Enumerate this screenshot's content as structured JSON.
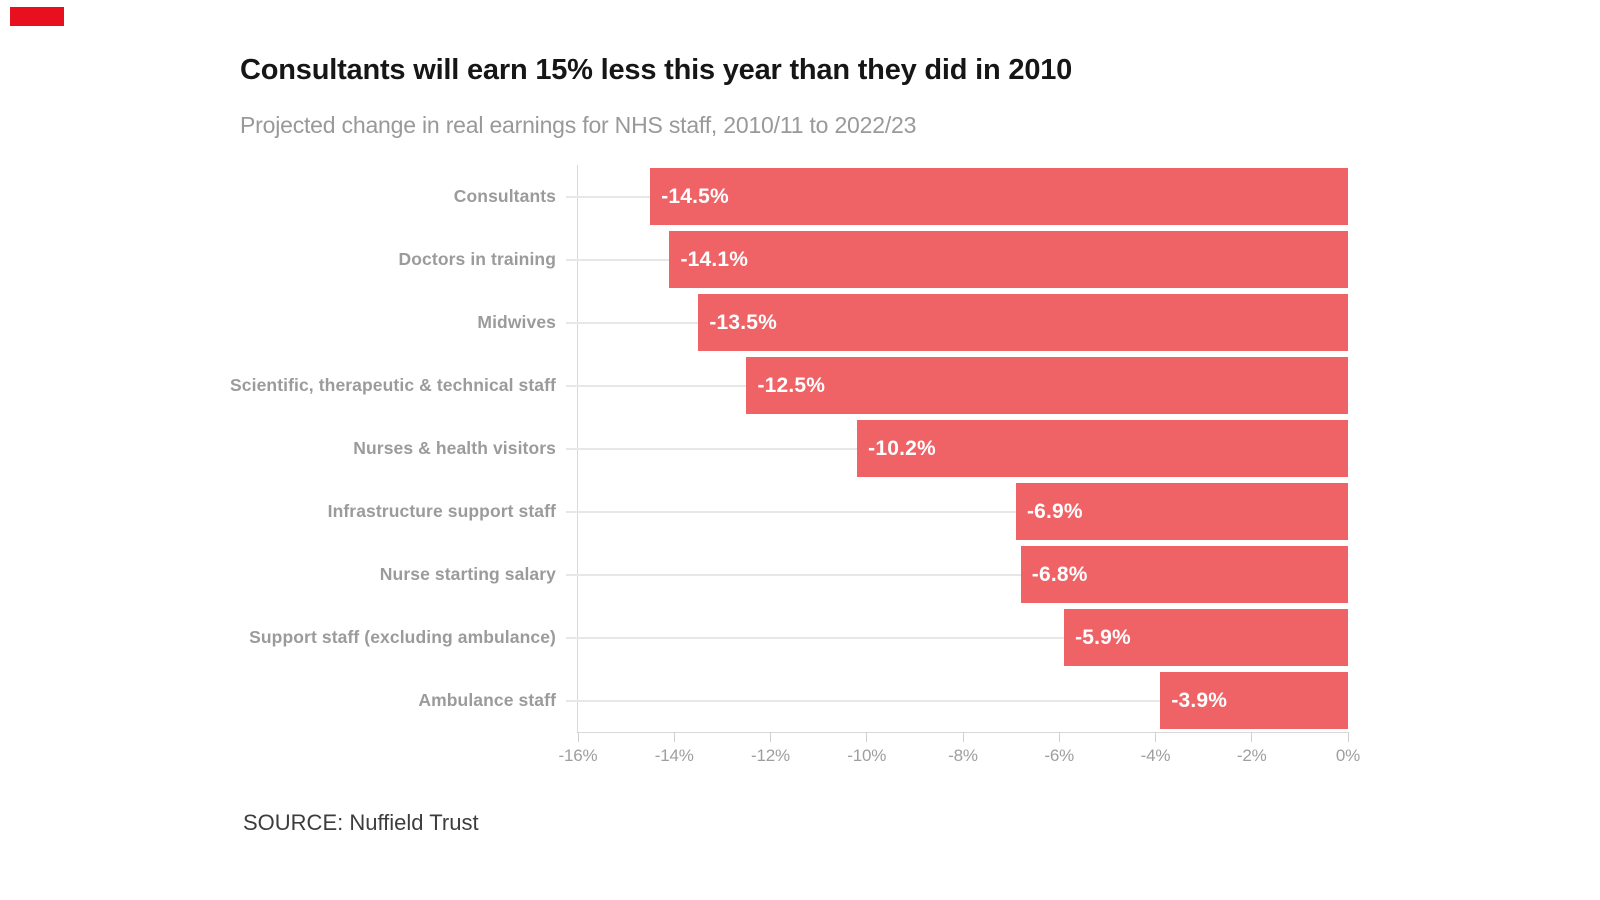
{
  "brand": {
    "name": "sky-red-flag",
    "color": "#e8101e"
  },
  "header": {
    "title": "Consultants will earn 15% less this year than they did in 2010",
    "subtitle": "Projected change in real earnings for NHS staff, 2010/11 to 2022/23"
  },
  "source": {
    "label": "SOURCE: Nuffield Trust"
  },
  "chart_data": {
    "type": "bar",
    "orientation": "horizontal",
    "title": "Consultants will earn 15% less this year than they did in 2010",
    "subtitle": "Projected change in real earnings for NHS staff, 2010/11 to 2022/23",
    "categories": [
      "Consultants",
      "Doctors in training",
      "Midwives",
      "Scientific, therapeutic & technical staff",
      "Nurses & health visitors",
      "Infrastructure support staff",
      "Nurse starting salary",
      "Support staff (excluding ambulance)",
      "Ambulance staff"
    ],
    "values": [
      -14.5,
      -14.1,
      -13.5,
      -12.5,
      -10.2,
      -6.9,
      -6.8,
      -5.9,
      -3.9
    ],
    "value_labels": [
      "-14.5%",
      "-14.1%",
      "-13.5%",
      "-12.5%",
      "-10.2%",
      "-6.9%",
      "-6.8%",
      "-5.9%",
      "-3.9%"
    ],
    "xlim": [
      -16,
      0
    ],
    "x_ticks": {
      "values": [
        -16,
        -14,
        -12,
        -10,
        -8,
        -6,
        -4,
        -2,
        0
      ],
      "labels": [
        "-16%",
        "-14%",
        "-12%",
        "-10%",
        "-8%",
        "-6%",
        "-4%",
        "-2%",
        "0%"
      ]
    },
    "bar_color": "#ef6367",
    "value_label_color": "#ffffff",
    "category_label_color": "#9b9b9b",
    "tick_label_color": "#9e9e9e",
    "gridline_color": "#e7e7e7",
    "legend": "none",
    "grid": "horizontal row leader lines; left and bottom spines with tick marks"
  }
}
